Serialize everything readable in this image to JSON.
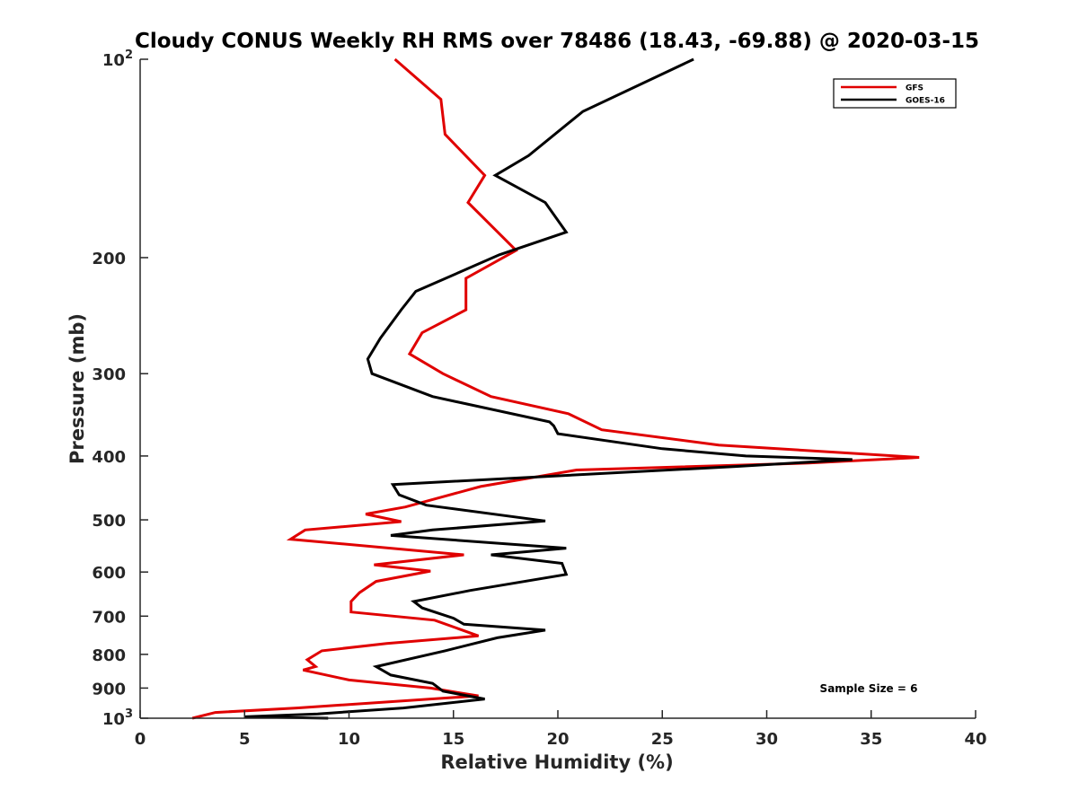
{
  "chart_data": {
    "type": "line",
    "title": "Cloudy CONUS Weekly RH RMS over 78486 (18.43, -69.88) @ 2020-03-15",
    "xlabel": "Relative Humidity (%)",
    "ylabel": "Pressure (mb)",
    "xlim": [
      0,
      40
    ],
    "ylim": [
      100,
      1000
    ],
    "y_scale": "log",
    "y_reversed": true,
    "x_ticks": [
      "0",
      "5",
      "10",
      "15",
      "20",
      "25",
      "30",
      "35",
      "40"
    ],
    "y_ticks": [
      {
        "value": 100,
        "base": "10",
        "exp": "2"
      },
      {
        "value": 200,
        "label": "200"
      },
      {
        "value": 300,
        "label": "300"
      },
      {
        "value": 400,
        "label": "400"
      },
      {
        "value": 500,
        "label": "500"
      },
      {
        "value": 600,
        "label": "600"
      },
      {
        "value": 700,
        "label": "700"
      },
      {
        "value": 800,
        "label": "800"
      },
      {
        "value": 900,
        "label": "900"
      },
      {
        "value": 1000,
        "base": "10",
        "exp": "3"
      }
    ],
    "legend_position": "top-right",
    "annotation": "Sample Size = 6",
    "series": [
      {
        "name": "GFS",
        "color": "#e00000",
        "points": [
          [
            12.2,
            100
          ],
          [
            14.4,
            115
          ],
          [
            14.6,
            130
          ],
          [
            16.5,
            150
          ],
          [
            15.7,
            165
          ],
          [
            18.0,
            195
          ],
          [
            15.6,
            215
          ],
          [
            15.6,
            240
          ],
          [
            13.5,
            260
          ],
          [
            12.9,
            280
          ],
          [
            14.5,
            300
          ],
          [
            16.8,
            325
          ],
          [
            20.5,
            345
          ],
          [
            22.1,
            365
          ],
          [
            27.7,
            385
          ],
          [
            37.3,
            402
          ],
          [
            32.0,
            410
          ],
          [
            20.9,
            420
          ],
          [
            16.3,
            445
          ],
          [
            12.7,
            478
          ],
          [
            10.8,
            490
          ],
          [
            12.5,
            503
          ],
          [
            7.9,
            518
          ],
          [
            7.2,
            535
          ],
          [
            15.5,
            565
          ],
          [
            11.2,
            585
          ],
          [
            13.9,
            598
          ],
          [
            11.3,
            620
          ],
          [
            10.5,
            645
          ],
          [
            10.1,
            665
          ],
          [
            10.1,
            690
          ],
          [
            14.1,
            710
          ],
          [
            16.2,
            750
          ],
          [
            11.8,
            770
          ],
          [
            8.7,
            790
          ],
          [
            8.0,
            815
          ],
          [
            8.4,
            835
          ],
          [
            7.8,
            845
          ],
          [
            10.0,
            875
          ],
          [
            13.9,
            900
          ],
          [
            16.2,
            925
          ],
          [
            7.5,
            965
          ],
          [
            3.6,
            980
          ],
          [
            2.5,
            1000
          ]
        ]
      },
      {
        "name": "GOES-16",
        "color": "#000000",
        "points": [
          [
            26.5,
            100
          ],
          [
            21.2,
            120
          ],
          [
            18.6,
            140
          ],
          [
            17.0,
            150
          ],
          [
            19.4,
            165
          ],
          [
            20.4,
            183
          ],
          [
            17.2,
            198
          ],
          [
            13.2,
            225
          ],
          [
            12.5,
            240
          ],
          [
            11.5,
            265
          ],
          [
            10.9,
            285
          ],
          [
            11.1,
            300
          ],
          [
            14.0,
            325
          ],
          [
            19.6,
            355
          ],
          [
            19.8,
            360
          ],
          [
            20.0,
            370
          ],
          [
            25.0,
            390
          ],
          [
            29.0,
            400
          ],
          [
            34.1,
            405
          ],
          [
            28.5,
            415
          ],
          [
            12.1,
            442
          ],
          [
            12.4,
            458
          ],
          [
            13.7,
            475
          ],
          [
            19.4,
            502
          ],
          [
            14.0,
            518
          ],
          [
            12.0,
            528
          ],
          [
            20.4,
            552
          ],
          [
            16.8,
            565
          ],
          [
            20.2,
            582
          ],
          [
            20.4,
            605
          ],
          [
            15.8,
            640
          ],
          [
            13.1,
            665
          ],
          [
            13.5,
            680
          ],
          [
            15.0,
            705
          ],
          [
            15.5,
            720
          ],
          [
            19.4,
            735
          ],
          [
            17.1,
            755
          ],
          [
            14.6,
            790
          ],
          [
            11.3,
            835
          ],
          [
            12.0,
            860
          ],
          [
            14.0,
            885
          ],
          [
            14.5,
            910
          ],
          [
            16.5,
            935
          ],
          [
            12.6,
            965
          ],
          [
            8.5,
            985
          ],
          [
            5.0,
            995
          ],
          [
            9.0,
            1000
          ]
        ]
      }
    ]
  }
}
